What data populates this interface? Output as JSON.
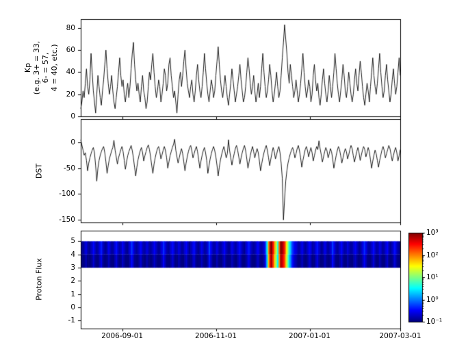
{
  "labels": {
    "kp": "Kp\n(e.g. 3+ = 33,\n6- = 57,\n4 = 40, etc.)",
    "dst": "DST",
    "proton_flux": "Proton Flux"
  },
  "figure": {
    "bg": "#ffffff",
    "fg": "#000000",
    "x_range_days": [
      0,
      208
    ],
    "x_start_date": "2006-08-05",
    "x_end_date": "2007-03-01",
    "x_ticks": {
      "days": [
        27,
        88,
        149,
        208
      ],
      "labels": [
        "2006-09-01",
        "2006-11-01",
        "2007-01-01",
        "2007-03-01"
      ]
    }
  },
  "colorbar": {
    "scale": "log",
    "clim": [
      0.1,
      1000
    ],
    "colormap": "jet",
    "tick_values": [
      1000,
      100,
      10,
      1,
      0.1
    ],
    "tick_labels": [
      "10³",
      "10²",
      "10¹",
      "10⁰",
      "10⁻¹"
    ]
  },
  "chart_data": [
    {
      "type": "line",
      "name": "Kp",
      "ylabel": "Kp (e.g. 3+ = 33, 6- = 57, 4 = 40, etc.)",
      "color": "#000000",
      "ylim": [
        0,
        88
      ],
      "ytick_values": [
        0,
        20,
        40,
        60,
        80
      ],
      "ytick_labels": [
        "0",
        "20",
        "40",
        "60",
        "80"
      ],
      "values": [
        7,
        13,
        23,
        17,
        30,
        43,
        27,
        20,
        33,
        57,
        40,
        23,
        13,
        3,
        20,
        37,
        27,
        17,
        10,
        23,
        33,
        47,
        60,
        43,
        30,
        20,
        27,
        37,
        23,
        13,
        7,
        17,
        27,
        40,
        53,
        37,
        27,
        33,
        20,
        13,
        23,
        30,
        17,
        27,
        43,
        57,
        67,
        47,
        33,
        23,
        30,
        20,
        13,
        27,
        37,
        23,
        17,
        7,
        13,
        27,
        40,
        33,
        47,
        57,
        40,
        27,
        17,
        23,
        33,
        27,
        13,
        20,
        30,
        43,
        37,
        23,
        30,
        47,
        53,
        37,
        27,
        17,
        23,
        13,
        3,
        20,
        33,
        40,
        27,
        37,
        50,
        60,
        43,
        30,
        23,
        17,
        27,
        33,
        20,
        13,
        23,
        37,
        47,
        33,
        23,
        17,
        27,
        40,
        57,
        43,
        30,
        20,
        13,
        23,
        33,
        27,
        17,
        23,
        37,
        50,
        63,
        47,
        33,
        23,
        17,
        27,
        37,
        27,
        17,
        10,
        20,
        30,
        43,
        33,
        23,
        13,
        20,
        27,
        37,
        47,
        33,
        23,
        13,
        17,
        27,
        40,
        53,
        43,
        30,
        20,
        27,
        37,
        23,
        13,
        20,
        30,
        17,
        27,
        43,
        57,
        40,
        27,
        17,
        23,
        33,
        47,
        37,
        23,
        13,
        20,
        30,
        40,
        27,
        17,
        23,
        37,
        53,
        67,
        83,
        70,
        57,
        40,
        30,
        47,
        37,
        27,
        17,
        23,
        33,
        23,
        13,
        20,
        30,
        43,
        57,
        40,
        27,
        17,
        23,
        33,
        27,
        13,
        20,
        37,
        47,
        33,
        23,
        30,
        17,
        10,
        20,
        33,
        43,
        30,
        20,
        13,
        23,
        37,
        27,
        17,
        27,
        40,
        57,
        43,
        30,
        20,
        13,
        23,
        33,
        47,
        37,
        23,
        17,
        27,
        40,
        30,
        20,
        13,
        20,
        33,
        43,
        30,
        23,
        37,
        50,
        40,
        27,
        17,
        10,
        20,
        30,
        23,
        13,
        27,
        40,
        53,
        37,
        27,
        20,
        30,
        43,
        57,
        40,
        27,
        17,
        23,
        37,
        47,
        33,
        23,
        13,
        20,
        33,
        43,
        30,
        20,
        27,
        40,
        53,
        37
      ]
    },
    {
      "type": "line",
      "name": "DST",
      "ylabel": "DST",
      "color": "#000000",
      "ylim": [
        -155,
        45
      ],
      "ytick_values": [
        0,
        -50,
        -100,
        -150
      ],
      "ytick_labels": [
        "0",
        "-50",
        "-100",
        "-150"
      ],
      "values": [
        5,
        -5,
        -15,
        -25,
        -20,
        -35,
        -55,
        -40,
        -30,
        -22,
        -15,
        -10,
        -20,
        -45,
        -75,
        -50,
        -35,
        -25,
        -18,
        -12,
        -8,
        -20,
        -38,
        -60,
        -45,
        -32,
        -24,
        -16,
        -10,
        4,
        -15,
        -28,
        -42,
        -30,
        -22,
        -14,
        -8,
        -18,
        -35,
        -52,
        -38,
        -26,
        -18,
        -12,
        -6,
        -16,
        -30,
        -48,
        -65,
        -48,
        -34,
        -24,
        -16,
        -10,
        -20,
        -36,
        -26,
        -18,
        -10,
        -5,
        -14,
        -28,
        -45,
        -60,
        -42,
        -30,
        -20,
        -12,
        -8,
        -18,
        -32,
        -24,
        -15,
        -8,
        -16,
        -30,
        -50,
        -38,
        -26,
        -18,
        -10,
        -4,
        6,
        -15,
        -28,
        -40,
        -30,
        -20,
        -12,
        -22,
        -38,
        -55,
        -40,
        -28,
        -18,
        -10,
        -6,
        -16,
        -30,
        -22,
        -14,
        -8,
        -18,
        -34,
        -50,
        -36,
        -25,
        -16,
        -10,
        -20,
        -35,
        -60,
        -45,
        -32,
        -22,
        -14,
        -8,
        -16,
        -28,
        -45,
        -65,
        -48,
        -34,
        -24,
        -15,
        -8,
        -18,
        -30,
        -22,
        5,
        -16,
        -30,
        -44,
        -32,
        -22,
        -12,
        -6,
        -15,
        -28,
        -42,
        -30,
        -20,
        -12,
        -6,
        -16,
        -32,
        -50,
        -38,
        -26,
        -16,
        -8,
        -18,
        -30,
        -20,
        -12,
        -20,
        -36,
        -55,
        -42,
        -30,
        -20,
        -12,
        -6,
        -16,
        -30,
        -45,
        -32,
        -20,
        -10,
        -18,
        -32,
        -24,
        -14,
        -8,
        -20,
        -40,
        -70,
        -150,
        -110,
        -75,
        -55,
        -40,
        -30,
        -22,
        -15,
        -10,
        -18,
        -30,
        -22,
        -12,
        -6,
        -16,
        -30,
        -48,
        -35,
        -24,
        -14,
        -8,
        -16,
        -28,
        -18,
        -10,
        -20,
        -36,
        -26,
        -16,
        -8,
        -14,
        3,
        -12,
        -24,
        -38,
        -28,
        -18,
        -10,
        -16,
        -30,
        -22,
        -12,
        -18,
        -32,
        -50,
        -38,
        -26,
        -16,
        -8,
        -14,
        -26,
        -40,
        -30,
        -20,
        -12,
        -18,
        -32,
        -24,
        -14,
        -6,
        -12,
        -26,
        -38,
        -28,
        -18,
        -10,
        -20,
        -35,
        -25,
        -15,
        -8,
        -14,
        -28,
        -20,
        -10,
        -18,
        -34,
        -50,
        -36,
        -25,
        -15,
        -22,
        -35,
        -48,
        -35,
        -25,
        -15,
        -8,
        -16,
        -30,
        -22,
        -14,
        -6,
        -12,
        -24,
        -36,
        -26,
        -16,
        -10,
        -20,
        -36,
        -26,
        -14
      ]
    },
    {
      "type": "heatmap",
      "name": "Proton Flux",
      "ylabel": "Proton Flux",
      "ylim": [
        -1.6,
        5.8
      ],
      "ytick_values": [
        -1,
        0,
        1,
        2,
        3,
        4,
        5
      ],
      "ytick_labels": [
        "-1",
        "0",
        "1",
        "2",
        "3",
        "4",
        "5"
      ],
      "band_y": [
        3,
        5
      ],
      "colormap": "jet",
      "clim": [
        0.1,
        1000
      ],
      "values": [
        0.12,
        0.1,
        0.15,
        0.22,
        0.14,
        0.1,
        0.13,
        0.18,
        0.28,
        0.16,
        0.11,
        0.14,
        0.22,
        0.35,
        0.18,
        0.12,
        0.1,
        0.16,
        0.24,
        0.15,
        0.11,
        0.13,
        0.2,
        0.3,
        0.17,
        0.12,
        0.15,
        0.25,
        0.18,
        0.12,
        0.1,
        0.14,
        0.22,
        0.45,
        0.25,
        0.15,
        0.11,
        0.13,
        0.19,
        0.28,
        0.16,
        0.12,
        0.14,
        0.21,
        0.15,
        0.11,
        0.13,
        0.18,
        0.26,
        0.17,
        0.12,
        0.1,
        0.15,
        0.23,
        0.4,
        0.22,
        0.14,
        0.11,
        0.13,
        0.2,
        0.29,
        0.17,
        0.12,
        0.14,
        0.22,
        0.16,
        0.11,
        0.13,
        0.19,
        0.27,
        0.15,
        0.1,
        0.14,
        0.21,
        0.3,
        0.18,
        0.12,
        0.1,
        0.15,
        0.24,
        0.16,
        0.11,
        0.14,
        0.2,
        0.5,
        0.28,
        0.16,
        0.12,
        0.14,
        0.22,
        0.15,
        0.11,
        0.13,
        0.19,
        0.27,
        0.16,
        0.12,
        0.1,
        0.15,
        0.23,
        0.17,
        0.12,
        0.14,
        0.21,
        0.3,
        0.18,
        0.13,
        0.1,
        0.15,
        0.24,
        0.35,
        0.2,
        0.14,
        0.11,
        0.13,
        0.19,
        0.26,
        0.16,
        0.12,
        0.14,
        0.2,
        0.5,
        3,
        80,
        600,
        950,
        250,
        60,
        15,
        4,
        120,
        950,
        650,
        350,
        100,
        25,
        6,
        2,
        0.8,
        0.4,
        0.25,
        0.2,
        0.15,
        0.12,
        0.16,
        0.24,
        0.16,
        0.11,
        0.13,
        0.2,
        0.28,
        0.17,
        0.12,
        0.14,
        0.22,
        0.32,
        0.19,
        0.13,
        0.1,
        0.15,
        0.23,
        0.16,
        0.11,
        0.14,
        0.2,
        0.45,
        0.25,
        0.15,
        0.11,
        0.13,
        0.19,
        0.28,
        0.16,
        0.12,
        0.14,
        0.21,
        0.15,
        0.11,
        0.13,
        0.18,
        0.26,
        0.17,
        0.12,
        0.1,
        0.15,
        0.23,
        0.4,
        0.22,
        0.14,
        0.11,
        0.13,
        0.2,
        0.29,
        0.17,
        0.12,
        0.14,
        0.22,
        0.16,
        0.11,
        0.13,
        0.19,
        0.27,
        0.15,
        0.1,
        0.14,
        0.21,
        0.3,
        0.18,
        0.12,
        0.1
      ]
    }
  ]
}
